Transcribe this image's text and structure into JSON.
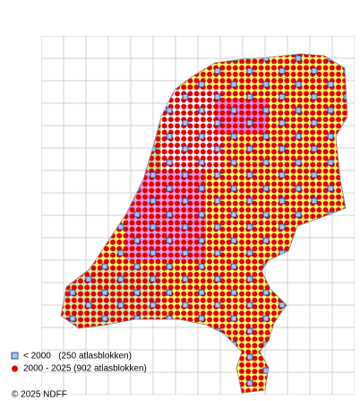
{
  "legend": {
    "items": [
      {
        "label": "< 2000   (250 atlasblokken)"
      },
      {
        "label": "2000 - 2025 (902 atlasblokken)"
      }
    ]
  },
  "copyright": "© 2025 NDFF"
}
